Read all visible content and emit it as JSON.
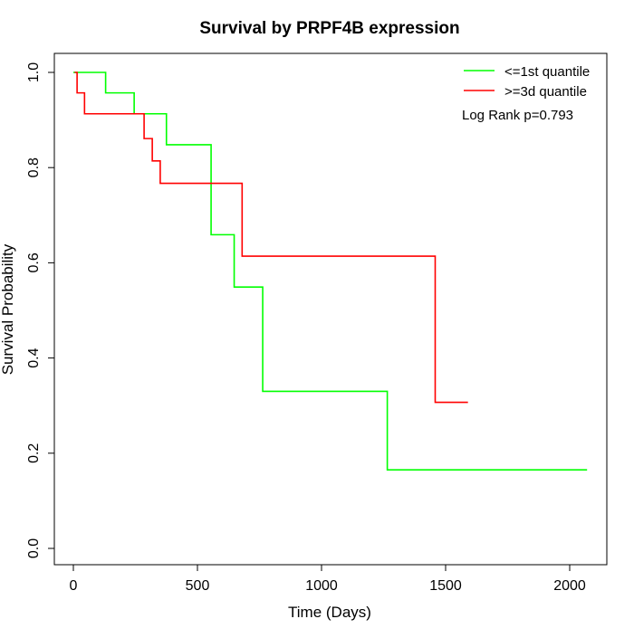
{
  "chart_data": {
    "type": "line",
    "title": "Survival by PRPF4B expression",
    "xlabel": "Time (Days)",
    "ylabel": "Survival Probability",
    "xlim": [
      0,
      2070
    ],
    "ylim": [
      0,
      1
    ],
    "xticks": [
      0,
      500,
      1000,
      1500,
      2000
    ],
    "xtick_labels": [
      "0",
      "500",
      "1000",
      "1500",
      "2000"
    ],
    "yticks": [
      0,
      0.2,
      0.4,
      0.6,
      0.8,
      1.0
    ],
    "ytick_labels": [
      "0.0",
      "0.2",
      "0.4",
      "0.6",
      "0.8",
      "1.0"
    ],
    "grid": false,
    "legend_position": "top-right",
    "annotation": "Log Rank p=0.793",
    "series": [
      {
        "name": "<=1st quantile",
        "color": "#00ff00",
        "step": true,
        "x": [
          0,
          130,
          245,
          375,
          555,
          648,
          763,
          1265,
          2070
        ],
        "y": [
          1.0,
          0.957,
          0.913,
          0.848,
          0.659,
          0.549,
          0.33,
          0.165,
          0.165
        ]
      },
      {
        "name": ">=3d quantile",
        "color": "#ff0000",
        "step": true,
        "x": [
          5,
          15,
          45,
          285,
          318,
          350,
          680,
          1458,
          1590
        ],
        "y": [
          1.0,
          0.957,
          0.913,
          0.861,
          0.814,
          0.767,
          0.614,
          0.307,
          0.307
        ]
      }
    ]
  }
}
